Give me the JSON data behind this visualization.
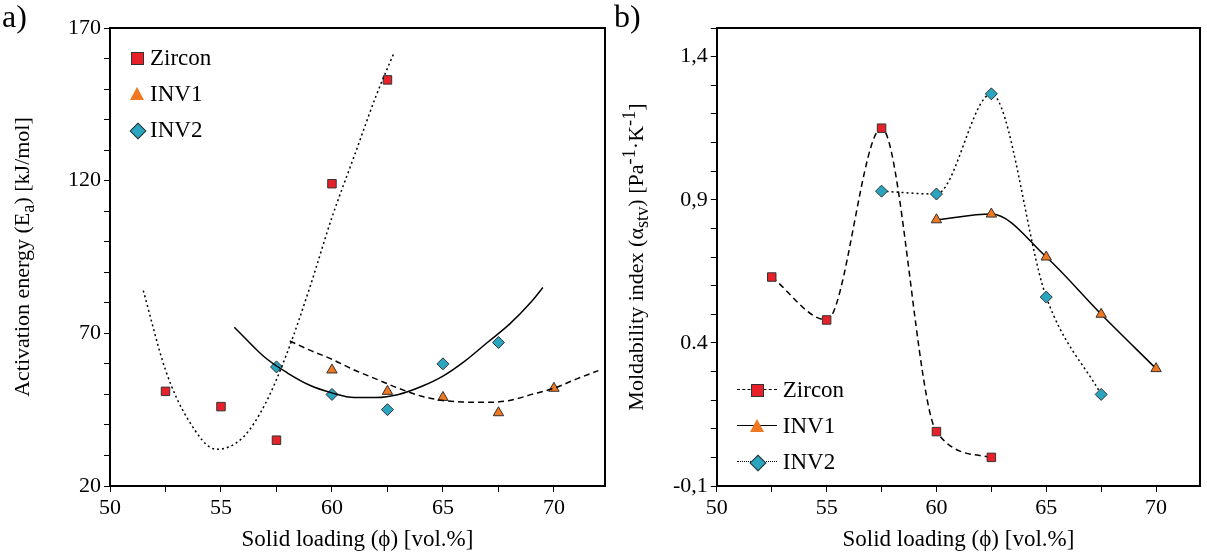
{
  "chart_data": [
    {
      "type": "scatter",
      "title": "a)",
      "xlabel": "Solid loading (ϕ) [vol.%]",
      "ylabel": "Activation energy (E$_{a}$) [kJ/mol]",
      "xlim": [
        50,
        72.3
      ],
      "ylim": [
        20,
        170
      ],
      "xticks": [
        50,
        {
          "value": 52.5,
          "label": null
        },
        55,
        {
          "value": 57.5,
          "label": null
        },
        60,
        {
          "value": 62.5,
          "label": null
        },
        65,
        {
          "value": 67.5,
          "label": null
        },
        70
      ],
      "yticks": [
        20,
        {
          "value": 30,
          "label": null
        },
        {
          "value": 40,
          "label": null
        },
        {
          "value": 50,
          "label": null
        },
        {
          "value": 60,
          "label": null
        },
        70,
        {
          "value": 80,
          "label": null
        },
        {
          "value": 90,
          "label": null
        },
        {
          "value": 100,
          "label": null
        },
        {
          "value": 110,
          "label": null
        },
        120,
        {
          "value": 130,
          "label": null
        },
        {
          "value": 140,
          "label": null
        },
        {
          "value": 150,
          "label": null
        },
        {
          "value": 160,
          "label": null
        },
        170
      ],
      "grid": false,
      "legend": "top left",
      "series": [
        {
          "name": "Zircon",
          "color": "#e8202a",
          "marker": "square",
          "x": [
            52.5,
            55,
            57.5,
            60,
            62.5
          ],
          "values": [
            51,
            46,
            35,
            119,
            153
          ]
        },
        {
          "name": "INV1",
          "color": "#f07820",
          "marker": "triangle",
          "x": [
            60,
            62.5,
            65,
            67.5,
            70
          ],
          "values": [
            58,
            51,
            49,
            44,
            52
          ]
        },
        {
          "name": "INV2",
          "color": "#2aa5c0",
          "marker": "diamond",
          "x": [
            57.5,
            60,
            62.5,
            65,
            67.5
          ],
          "values": [
            59,
            50,
            45,
            60,
            67
          ]
        },
        {
          "type": "line",
          "color": "#000000",
          "marker": "none",
          "line_style": "dotted",
          "x": [
            51.5,
            52.5,
            53.5,
            54.8,
            56,
            57,
            58,
            59,
            60,
            61,
            62,
            62.8
          ],
          "values": [
            84,
            58,
            42,
            32,
            36,
            47,
            64,
            85,
            108,
            128,
            148,
            162
          ]
        },
        {
          "type": "line",
          "color": "#000000",
          "marker": "none",
          "line_style": "solid",
          "x": [
            55.6,
            57,
            58,
            59,
            60,
            61,
            62,
            63,
            64,
            65,
            66,
            67,
            68,
            69,
            69.5
          ],
          "values": [
            72,
            62,
            57,
            53,
            50.5,
            49,
            49,
            50,
            52.5,
            56,
            61,
            67,
            73,
            80.5,
            85
          ]
        },
        {
          "type": "line",
          "color": "#000000",
          "marker": "none",
          "line_style": "dashed",
          "x": [
            58.1,
            59,
            60,
            61,
            62,
            63,
            64,
            65,
            66,
            67,
            68,
            69,
            70,
            71,
            72
          ],
          "values": [
            67.5,
            64.5,
            61.5,
            58,
            55,
            52,
            49.5,
            48,
            47.5,
            47.4,
            48,
            50,
            52,
            55,
            57.8
          ]
        }
      ]
    },
    {
      "type": "line",
      "title": "b)",
      "xlabel": "Solid loading (ϕ) [vol.%]",
      "ylabel": "Moldability index (α$_{stv}$) [Pa$^{-1}$·K$^{-1}$]",
      "xlim": [
        50,
        72
      ],
      "ylim": [
        -0.1,
        1.5
      ],
      "xticks": [
        50,
        {
          "value": 52.5,
          "label": null
        },
        55,
        {
          "value": 57.5,
          "label": null
        },
        60,
        {
          "value": 62.5,
          "label": null
        },
        65,
        {
          "value": 67.5,
          "label": null
        },
        70
      ],
      "yticks": [
        {
          "value": -0.1,
          "label": "-0,1"
        },
        {
          "value": 0,
          "label": null
        },
        {
          "value": 0.1,
          "label": null
        },
        {
          "value": 0.2,
          "label": null
        },
        {
          "value": 0.3,
          "label": null
        },
        {
          "value": 0.4,
          "label": "0.4"
        },
        {
          "value": 0.5,
          "label": null
        },
        {
          "value": 0.6,
          "label": null
        },
        {
          "value": 0.7,
          "label": null
        },
        {
          "value": 0.8,
          "label": null
        },
        {
          "value": 0.9,
          "label": "0,9"
        },
        {
          "value": 1.0,
          "label": null
        },
        {
          "value": 1.1,
          "label": null
        },
        {
          "value": 1.2,
          "label": null
        },
        {
          "value": 1.3,
          "label": null
        },
        {
          "value": 1.4,
          "label": "1,4"
        },
        {
          "value": 1.5,
          "label": null
        }
      ],
      "grid": false,
      "legend": "bottom left",
      "series": [
        {
          "name": "Zircon",
          "color": "#e8202a",
          "marker": "square",
          "line_style": "dashed",
          "x": [
            52.5,
            55,
            57.5,
            60,
            62.5
          ],
          "values": [
            0.63,
            0.48,
            1.15,
            0.09,
            0.0
          ]
        },
        {
          "name": "INV1",
          "color": "#f07820",
          "marker": "triangle",
          "line_style": "solid",
          "x": [
            60,
            62.5,
            65,
            67.5,
            70
          ],
          "values": [
            0.83,
            0.85,
            0.7,
            0.5,
            0.31
          ]
        },
        {
          "name": "INV2",
          "color": "#2aa5c0",
          "marker": "diamond",
          "line_style": "dotted",
          "x": [
            57.5,
            60,
            62.5,
            65,
            67.5
          ],
          "values": [
            0.93,
            0.92,
            1.27,
            0.56,
            0.22
          ]
        }
      ]
    }
  ]
}
